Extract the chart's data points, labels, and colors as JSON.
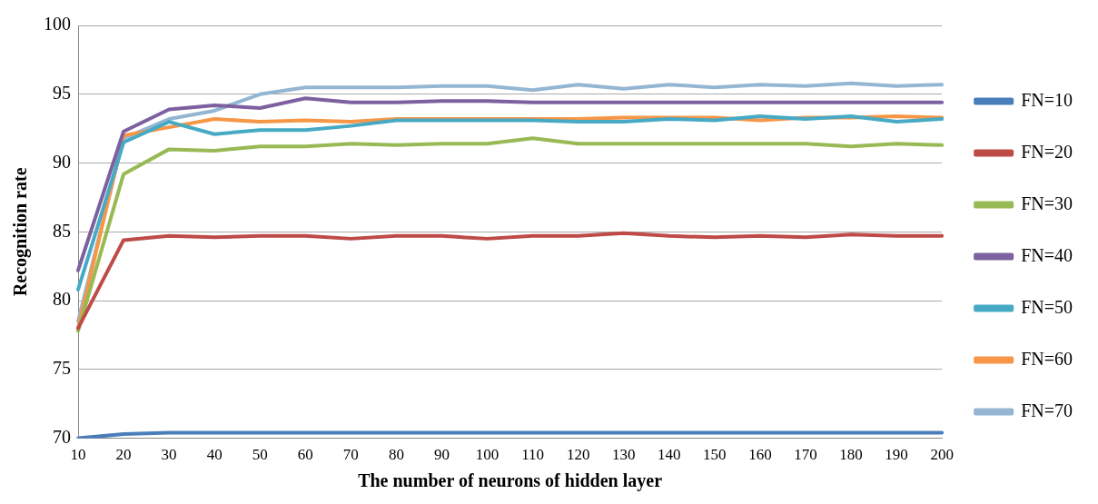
{
  "chart_data": {
    "type": "line",
    "xlabel": "The number of neurons of hidden layer",
    "ylabel": "Recognition rate",
    "categories": [
      "10",
      "20",
      "30",
      "40",
      "50",
      "60",
      "70",
      "80",
      "90",
      "100",
      "110",
      "120",
      "130",
      "140",
      "150",
      "160",
      "170",
      "180",
      "190",
      "200"
    ],
    "ylim": [
      70,
      100
    ],
    "yticks": [
      70,
      75,
      80,
      85,
      90,
      95,
      100
    ],
    "grid": "y",
    "legend": "right",
    "marker": "none",
    "line_style": "solid",
    "series": [
      {
        "name": "FN=10",
        "color": "#4a7ebb",
        "values": [
          70,
          70.3,
          70.4,
          70.4,
          70.4,
          70.4,
          70.4,
          70.4,
          70.4,
          70.4,
          70.4,
          70.4,
          70.4,
          70.4,
          70.4,
          70.4,
          70.4,
          70.4,
          70.4,
          70.4
        ]
      },
      {
        "name": "FN=20",
        "color": "#be4b48",
        "values": [
          78,
          84.4,
          84.7,
          84.6,
          84.7,
          84.7,
          84.5,
          84.7,
          84.7,
          84.5,
          84.7,
          84.7,
          84.9,
          84.7,
          84.6,
          84.7,
          84.6,
          84.8,
          84.7,
          84.7
        ]
      },
      {
        "name": "FN=30",
        "color": "#98b954",
        "values": [
          77.8,
          89.2,
          91,
          90.9,
          91.2,
          91.2,
          91.4,
          91.3,
          91.4,
          91.4,
          91.8,
          91.4,
          91.4,
          91.4,
          91.4,
          91.4,
          91.4,
          91.2,
          91.4,
          91.3
        ]
      },
      {
        "name": "FN=40",
        "color": "#7d60a0",
        "values": [
          82.2,
          92.3,
          93.9,
          94.2,
          94,
          94.7,
          94.4,
          94.4,
          94.5,
          94.5,
          94.4,
          94.4,
          94.4,
          94.4,
          94.4,
          94.4,
          94.4,
          94.4,
          94.4,
          94.4
        ]
      },
      {
        "name": "FN=50",
        "color": "#46aac5",
        "values": [
          80.8,
          91.5,
          93,
          92.1,
          92.4,
          92.4,
          92.7,
          93.1,
          93.1,
          93.1,
          93.1,
          93,
          93,
          93.2,
          93.1,
          93.4,
          93.2,
          93.4,
          93,
          93.2
        ]
      },
      {
        "name": "FN=60",
        "color": "#f79646",
        "values": [
          78,
          92,
          92.6,
          93.2,
          93,
          93.1,
          93,
          93.2,
          93.2,
          93.2,
          93.2,
          93.2,
          93.3,
          93.3,
          93.3,
          93.1,
          93.3,
          93.3,
          93.4,
          93.3
        ]
      },
      {
        "name": "FN=70",
        "color": "#94b6d2",
        "values": [
          78.5,
          91.8,
          93.2,
          93.8,
          95,
          95.5,
          95.5,
          95.5,
          95.6,
          95.6,
          95.3,
          95.7,
          95.4,
          95.7,
          95.5,
          95.7,
          95.6,
          95.8,
          95.6,
          95.7
        ]
      }
    ]
  }
}
